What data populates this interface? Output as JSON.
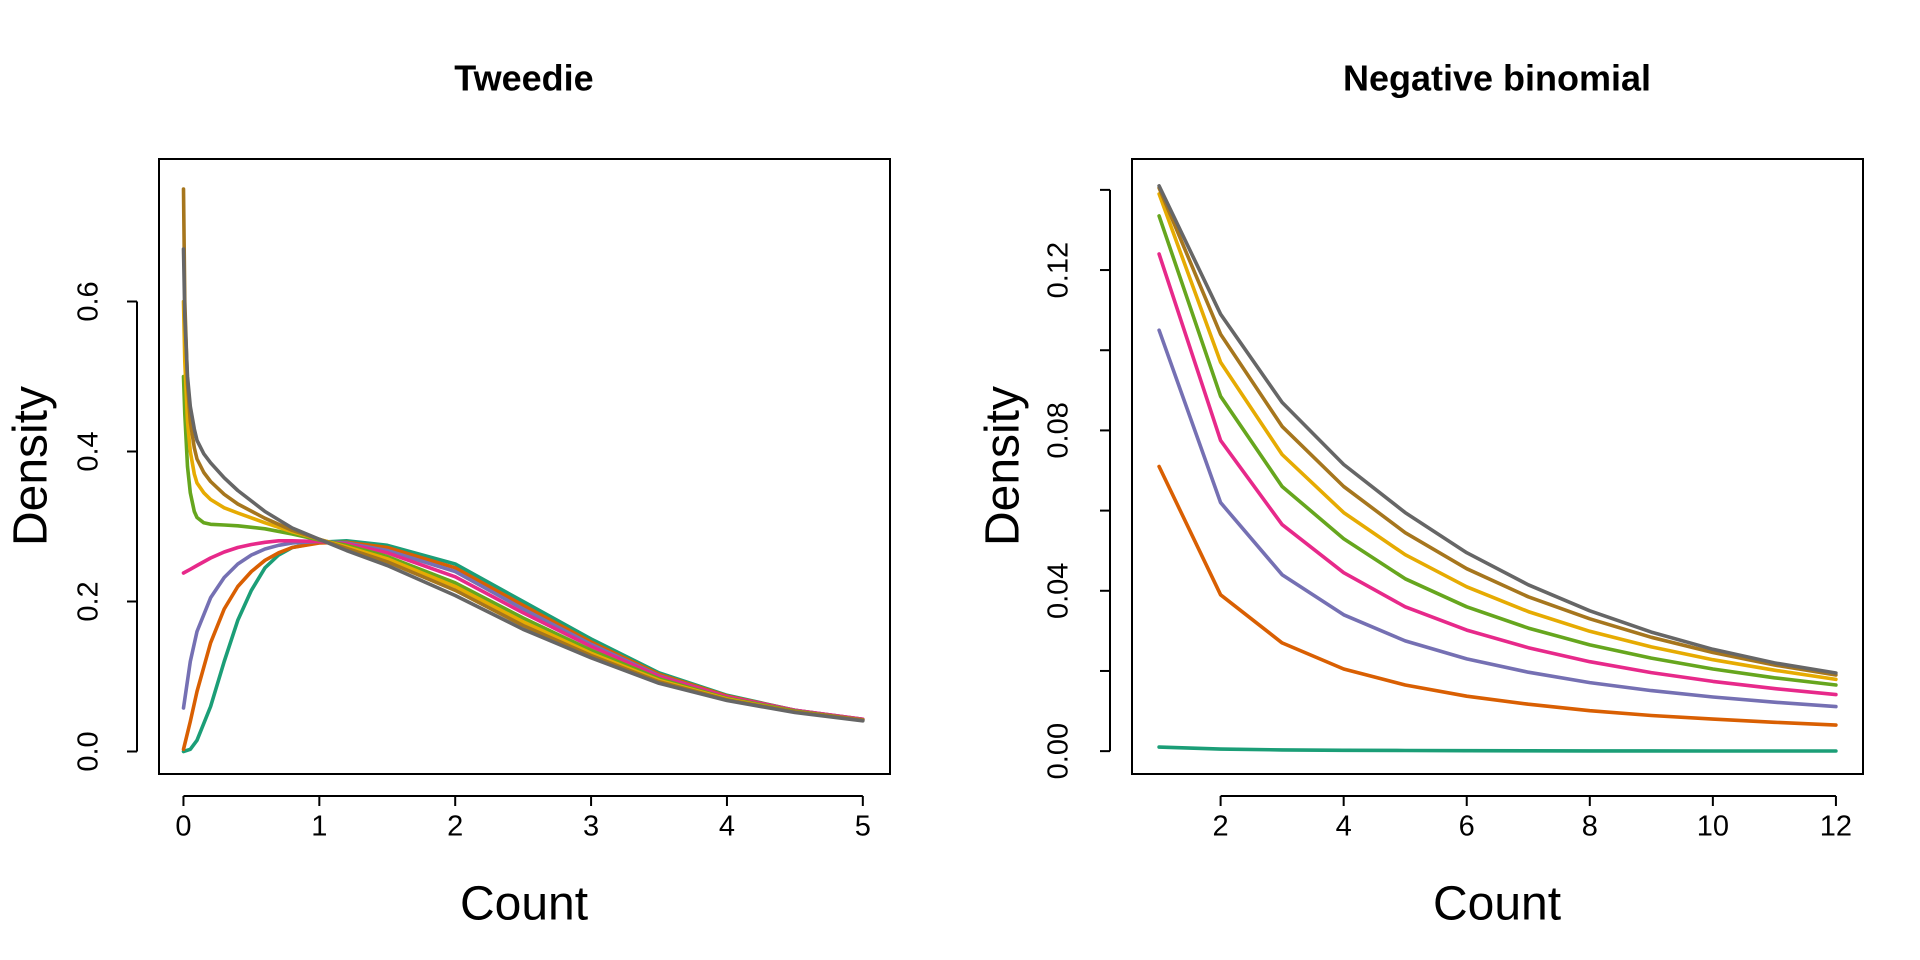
{
  "colors": {
    "c1": "#1b9e77",
    "c2": "#d95f02",
    "c3": "#7570b3",
    "c4": "#e7298a",
    "c5": "#66a61e",
    "c6": "#e6ab02",
    "c7": "#a6761d",
    "c8": "#666666"
  },
  "chart_data": [
    {
      "type": "line",
      "title": "Tweedie",
      "xlabel": "Count",
      "ylabel": "Density",
      "xlim": [
        -0.18,
        5.2
      ],
      "ylim": [
        -0.03,
        0.79
      ],
      "xticks": [
        0,
        1,
        2,
        3,
        4,
        5
      ],
      "yticks": [
        0.0,
        0.2,
        0.4,
        0.6
      ],
      "xtick_labels": [
        "0",
        "1",
        "2",
        "3",
        "4",
        "5"
      ],
      "ytick_labels": [
        "0.0",
        "0.2",
        "0.4",
        "0.6"
      ],
      "grid": false,
      "legend": "none",
      "series": [
        {
          "color": "#1b9e77",
          "x": [
            0,
            0.05,
            0.1,
            0.2,
            0.3,
            0.4,
            0.5,
            0.6,
            0.7,
            0.8,
            1.0,
            1.2,
            1.5,
            2.0,
            2.5,
            3.0,
            3.5,
            4.0,
            4.5,
            5.0
          ],
          "y": [
            0.0,
            0.003,
            0.015,
            0.06,
            0.12,
            0.175,
            0.215,
            0.245,
            0.262,
            0.272,
            0.279,
            0.281,
            0.275,
            0.25,
            0.2,
            0.15,
            0.105,
            0.075,
            0.055,
            0.042
          ]
        },
        {
          "color": "#d95f02",
          "x": [
            0,
            0.05,
            0.1,
            0.2,
            0.3,
            0.4,
            0.5,
            0.6,
            0.7,
            0.8,
            1.0,
            1.2,
            1.5,
            2.0,
            2.5,
            3.0,
            3.5,
            4.0,
            4.5,
            5.0
          ],
          "y": [
            0.003,
            0.04,
            0.08,
            0.145,
            0.19,
            0.22,
            0.24,
            0.255,
            0.265,
            0.272,
            0.278,
            0.279,
            0.272,
            0.245,
            0.195,
            0.146,
            0.103,
            0.074,
            0.055,
            0.043
          ]
        },
        {
          "color": "#7570b3",
          "x": [
            0,
            0.05,
            0.1,
            0.2,
            0.3,
            0.4,
            0.5,
            0.6,
            0.7,
            0.8,
            1.0,
            1.2,
            1.5,
            2.0,
            2.5,
            3.0,
            3.5,
            4.0,
            4.5,
            5.0
          ],
          "y": [
            0.058,
            0.12,
            0.16,
            0.205,
            0.232,
            0.25,
            0.262,
            0.27,
            0.275,
            0.278,
            0.28,
            0.278,
            0.268,
            0.24,
            0.19,
            0.143,
            0.101,
            0.073,
            0.055,
            0.043
          ]
        },
        {
          "color": "#e7298a",
          "x": [
            0,
            0.05,
            0.1,
            0.2,
            0.3,
            0.4,
            0.5,
            0.6,
            0.7,
            0.8,
            1.0,
            1.2,
            1.5,
            2.0,
            2.5,
            3.0,
            3.5,
            4.0,
            4.5,
            5.0
          ],
          "y": [
            0.238,
            0.243,
            0.248,
            0.258,
            0.266,
            0.272,
            0.276,
            0.279,
            0.281,
            0.281,
            0.28,
            0.277,
            0.265,
            0.233,
            0.185,
            0.14,
            0.1,
            0.073,
            0.055,
            0.043
          ]
        },
        {
          "color": "#66a61e",
          "x": [
            0,
            0.01,
            0.03,
            0.05,
            0.08,
            0.1,
            0.15,
            0.2,
            0.3,
            0.4,
            0.6,
            0.8,
            1.0,
            1.2,
            1.5,
            2.0,
            2.5,
            3.0,
            3.5,
            4.0,
            4.5,
            5.0
          ],
          "y": [
            0.5,
            0.45,
            0.38,
            0.345,
            0.32,
            0.312,
            0.305,
            0.303,
            0.302,
            0.301,
            0.297,
            0.29,
            0.282,
            0.275,
            0.26,
            0.225,
            0.178,
            0.135,
            0.097,
            0.071,
            0.054,
            0.042
          ]
        },
        {
          "color": "#e6ab02",
          "x": [
            0,
            0.01,
            0.03,
            0.05,
            0.08,
            0.1,
            0.15,
            0.2,
            0.3,
            0.4,
            0.6,
            0.8,
            1.0,
            1.2,
            1.5,
            2.0,
            2.5,
            3.0,
            3.5,
            4.0,
            4.5,
            5.0
          ],
          "y": [
            0.6,
            0.52,
            0.44,
            0.4,
            0.37,
            0.358,
            0.345,
            0.336,
            0.325,
            0.318,
            0.305,
            0.293,
            0.283,
            0.273,
            0.257,
            0.22,
            0.173,
            0.131,
            0.095,
            0.07,
            0.053,
            0.042
          ]
        },
        {
          "color": "#a6761d",
          "x": [
            0,
            0.01,
            0.03,
            0.05,
            0.08,
            0.1,
            0.15,
            0.2,
            0.3,
            0.4,
            0.6,
            0.8,
            1.0,
            1.2,
            1.5,
            2.0,
            2.5,
            3.0,
            3.5,
            4.0,
            4.5,
            5.0
          ],
          "y": [
            0.75,
            0.6,
            0.49,
            0.44,
            0.405,
            0.39,
            0.372,
            0.36,
            0.343,
            0.33,
            0.311,
            0.295,
            0.283,
            0.271,
            0.253,
            0.215,
            0.168,
            0.128,
            0.093,
            0.069,
            0.053,
            0.042
          ]
        },
        {
          "color": "#666666",
          "x": [
            0,
            0.01,
            0.03,
            0.05,
            0.08,
            0.1,
            0.15,
            0.2,
            0.3,
            0.4,
            0.6,
            0.8,
            1.0,
            1.2,
            1.5,
            2.0,
            2.5,
            3.0,
            3.5,
            4.0,
            4.5,
            5.0
          ],
          "y": [
            0.67,
            0.58,
            0.5,
            0.46,
            0.43,
            0.415,
            0.397,
            0.385,
            0.365,
            0.348,
            0.32,
            0.298,
            0.283,
            0.268,
            0.248,
            0.208,
            0.163,
            0.125,
            0.091,
            0.068,
            0.052,
            0.041
          ]
        }
      ]
    },
    {
      "type": "line",
      "title": "Negative binomial",
      "xlabel": "Count",
      "ylabel": "Density",
      "xlim": [
        0.56,
        12.44
      ],
      "ylim": [
        -0.0057,
        0.1477
      ],
      "xticks": [
        2,
        4,
        6,
        8,
        10,
        12
      ],
      "yticks": [
        0.0,
        0.02,
        0.04,
        0.06,
        0.08,
        0.1,
        0.12,
        0.14
      ],
      "xtick_labels": [
        "2",
        "4",
        "6",
        "8",
        "10",
        "12"
      ],
      "ytick_labels": [
        "0.00",
        "",
        "0.04",
        "",
        "0.08",
        "",
        "0.12",
        ""
      ],
      "grid": false,
      "legend": "none",
      "series": [
        {
          "color": "#1b9e77",
          "x": [
            1,
            2,
            3,
            4,
            5,
            6,
            7,
            8,
            9,
            10,
            11,
            12
          ],
          "y": [
            0.001,
            0.0005,
            0.0003,
            0.0002,
            0.00015,
            0.0001,
            8e-05,
            6e-05,
            5e-05,
            4e-05,
            3e-05,
            3e-05
          ]
        },
        {
          "color": "#d95f02",
          "x": [
            1,
            2,
            3,
            4,
            5,
            6,
            7,
            8,
            9,
            10,
            11,
            12
          ],
          "y": [
            0.071,
            0.039,
            0.027,
            0.0205,
            0.0165,
            0.0137,
            0.0117,
            0.0101,
            0.0089,
            0.008,
            0.0072,
            0.0065
          ]
        },
        {
          "color": "#7570b3",
          "x": [
            1,
            2,
            3,
            4,
            5,
            6,
            7,
            8,
            9,
            10,
            11,
            12
          ],
          "y": [
            0.105,
            0.062,
            0.044,
            0.034,
            0.0275,
            0.023,
            0.0197,
            0.0171,
            0.0151,
            0.0135,
            0.0122,
            0.0111
          ]
        },
        {
          "color": "#e7298a",
          "x": [
            1,
            2,
            3,
            4,
            5,
            6,
            7,
            8,
            9,
            10,
            11,
            12
          ],
          "y": [
            0.124,
            0.0775,
            0.0565,
            0.0445,
            0.036,
            0.0302,
            0.0258,
            0.0223,
            0.0196,
            0.0174,
            0.0156,
            0.0141
          ]
        },
        {
          "color": "#66a61e",
          "x": [
            1,
            2,
            3,
            4,
            5,
            6,
            7,
            8,
            9,
            10,
            11,
            12
          ],
          "y": [
            0.1335,
            0.0885,
            0.066,
            0.053,
            0.043,
            0.036,
            0.0307,
            0.0265,
            0.0232,
            0.0205,
            0.0183,
            0.0165
          ]
        },
        {
          "color": "#e6ab02",
          "x": [
            1,
            2,
            3,
            4,
            5,
            6,
            7,
            8,
            9,
            10,
            11,
            12
          ],
          "y": [
            0.139,
            0.097,
            0.074,
            0.0595,
            0.049,
            0.041,
            0.0348,
            0.0299,
            0.026,
            0.0228,
            0.0202,
            0.0179
          ]
        },
        {
          "color": "#a6761d",
          "x": [
            1,
            2,
            3,
            4,
            5,
            6,
            7,
            8,
            9,
            10,
            11,
            12
          ],
          "y": [
            0.1405,
            0.104,
            0.081,
            0.066,
            0.0545,
            0.0455,
            0.0385,
            0.033,
            0.0284,
            0.0246,
            0.0215,
            0.019
          ]
        },
        {
          "color": "#666666",
          "x": [
            1,
            2,
            3,
            4,
            5,
            6,
            7,
            8,
            9,
            10,
            11,
            12
          ],
          "y": [
            0.141,
            0.109,
            0.087,
            0.0715,
            0.0595,
            0.0495,
            0.0415,
            0.035,
            0.0297,
            0.0254,
            0.022,
            0.0195
          ]
        }
      ]
    }
  ]
}
